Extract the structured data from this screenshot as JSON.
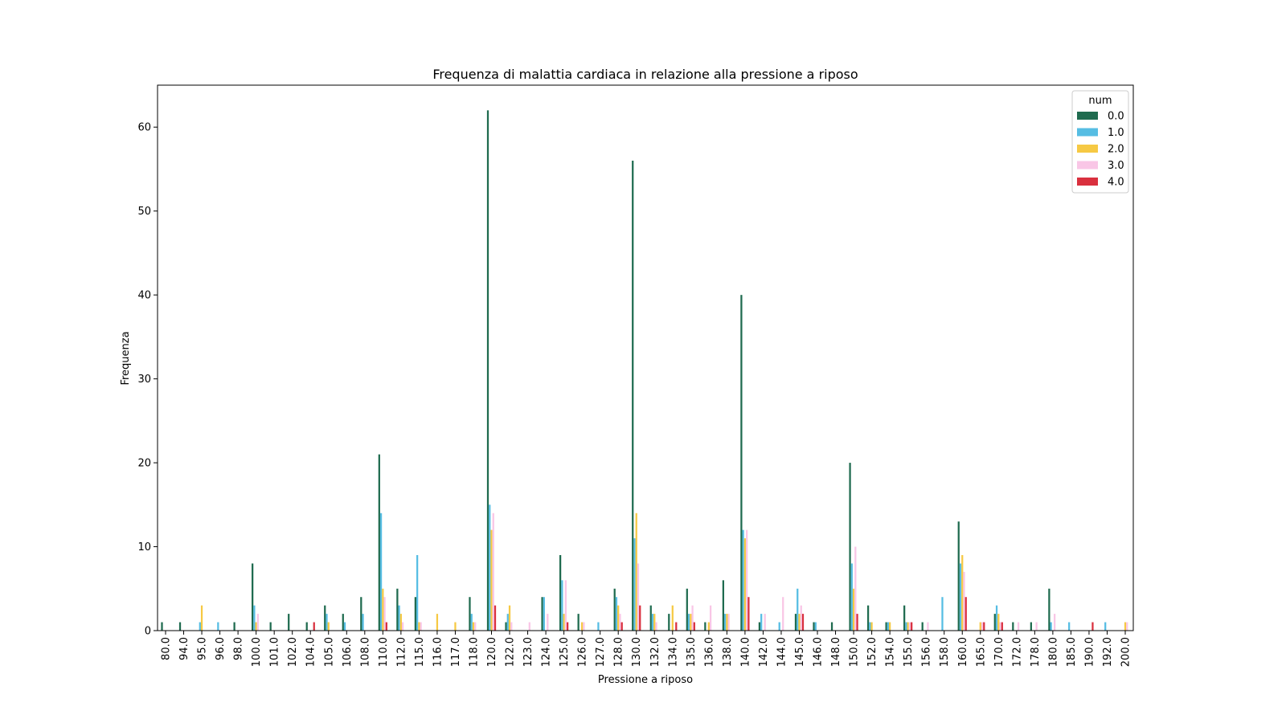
{
  "chart_data": {
    "type": "bar",
    "title": "Frequenza di malattia cardiaca in relazione alla pressione a riposo",
    "xlabel": "Pressione a riposo",
    "ylabel": "Frequenza",
    "ylim": [
      0,
      65
    ],
    "yticks": [
      0,
      10,
      20,
      30,
      40,
      50,
      60
    ],
    "grid": false,
    "legend": {
      "title": "num",
      "position": "top-right"
    },
    "categories": [
      "80.0",
      "94.0",
      "95.0",
      "96.0",
      "98.0",
      "100.0",
      "101.0",
      "102.0",
      "104.0",
      "105.0",
      "106.0",
      "108.0",
      "110.0",
      "112.0",
      "115.0",
      "116.0",
      "117.0",
      "118.0",
      "120.0",
      "122.0",
      "123.0",
      "124.0",
      "125.0",
      "126.0",
      "127.0",
      "128.0",
      "130.0",
      "132.0",
      "134.0",
      "135.0",
      "136.0",
      "138.0",
      "140.0",
      "142.0",
      "144.0",
      "145.0",
      "146.0",
      "148.0",
      "150.0",
      "152.0",
      "154.0",
      "155.0",
      "156.0",
      "158.0",
      "160.0",
      "165.0",
      "170.0",
      "172.0",
      "178.0",
      "180.0",
      "185.0",
      "190.0",
      "192.0",
      "200.0"
    ],
    "series": [
      {
        "name": "0.0",
        "color": "#1f6b4f",
        "values": [
          1,
          1,
          0,
          0,
          1,
          8,
          1,
          2,
          1,
          3,
          2,
          4,
          21,
          5,
          4,
          0,
          0,
          4,
          62,
          1,
          0,
          4,
          9,
          2,
          0,
          5,
          56,
          3,
          2,
          5,
          1,
          6,
          40,
          1,
          0,
          2,
          1,
          1,
          20,
          3,
          1,
          3,
          1,
          0,
          13,
          0,
          2,
          1,
          1,
          5,
          0,
          0,
          0,
          0
        ]
      },
      {
        "name": "1.0",
        "color": "#56bde3",
        "values": [
          0,
          0,
          1,
          1,
          0,
          3,
          0,
          0,
          0,
          2,
          1,
          2,
          14,
          3,
          9,
          0,
          0,
          2,
          15,
          2,
          0,
          4,
          6,
          0,
          1,
          4,
          11,
          2,
          0,
          2,
          0,
          2,
          12,
          2,
          1,
          5,
          1,
          0,
          8,
          1,
          1,
          1,
          0,
          4,
          8,
          0,
          3,
          0,
          0,
          1,
          1,
          0,
          1,
          0
        ]
      },
      {
        "name": "2.0",
        "color": "#f6c944",
        "values": [
          0,
          0,
          3,
          0,
          0,
          1,
          0,
          0,
          0,
          1,
          0,
          0,
          5,
          2,
          1,
          2,
          1,
          1,
          12,
          3,
          0,
          0,
          2,
          1,
          0,
          3,
          14,
          2,
          3,
          2,
          1,
          2,
          11,
          0,
          0,
          2,
          0,
          0,
          5,
          1,
          1,
          1,
          0,
          0,
          9,
          1,
          2,
          0,
          0,
          0,
          0,
          0,
          0,
          1
        ]
      },
      {
        "name": "3.0",
        "color": "#f9c6e6",
        "values": [
          0,
          0,
          0,
          0,
          0,
          2,
          0,
          0,
          0,
          0,
          0,
          0,
          4,
          1,
          1,
          0,
          0,
          1,
          14,
          1,
          1,
          2,
          6,
          1,
          0,
          2,
          8,
          1,
          0,
          3,
          3,
          2,
          12,
          2,
          4,
          3,
          0,
          0,
          10,
          0,
          0,
          1,
          1,
          0,
          7,
          1,
          1,
          1,
          1,
          2,
          0,
          0,
          0,
          1
        ]
      },
      {
        "name": "4.0",
        "color": "#d9303e",
        "values": [
          0,
          0,
          0,
          0,
          0,
          0,
          0,
          0,
          1,
          0,
          0,
          0,
          1,
          0,
          0,
          0,
          0,
          0,
          3,
          0,
          0,
          0,
          1,
          0,
          0,
          1,
          3,
          0,
          1,
          1,
          0,
          0,
          4,
          0,
          0,
          2,
          0,
          0,
          2,
          0,
          0,
          1,
          0,
          0,
          4,
          1,
          1,
          0,
          0,
          0,
          0,
          1,
          0,
          0
        ]
      }
    ]
  }
}
